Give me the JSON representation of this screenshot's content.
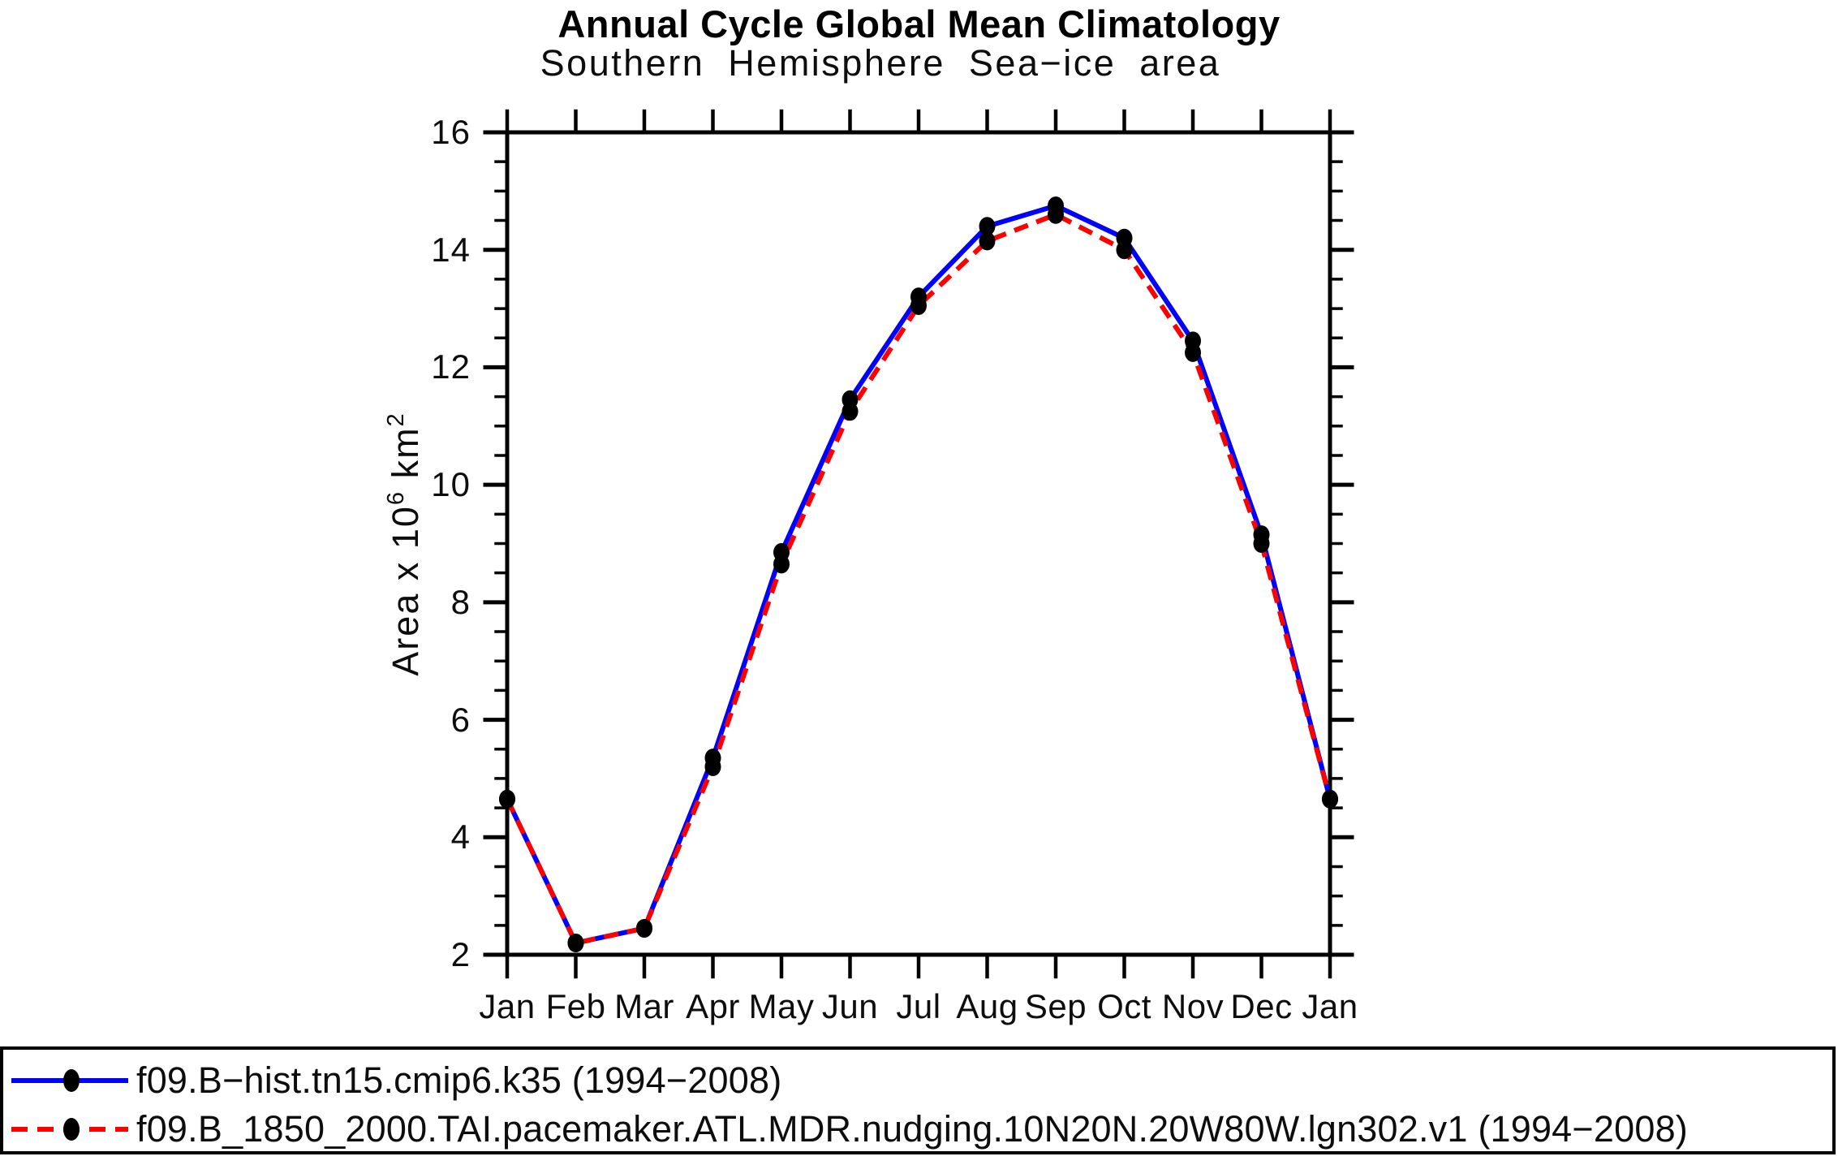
{
  "chart_data": {
    "type": "line",
    "title": "Annual Cycle Global Mean Climatology",
    "subtitle": "Southern Hemisphere Sea−ice area",
    "xlabel": "",
    "ylabel": "Area x 10^6 km^2",
    "ylabel_parts": {
      "prefix": "Area x 10",
      "exponent": "6",
      "unit": " km",
      "unit_exponent": "2"
    },
    "x_tick_labels": [
      "Jan",
      "Feb",
      "Mar",
      "Apr",
      "May",
      "Jun",
      "Jul",
      "Aug",
      "Sep",
      "Oct",
      "Nov",
      "Dec",
      "Jan"
    ],
    "y_ticks": [
      2,
      4,
      6,
      8,
      10,
      12,
      14,
      16
    ],
    "y_minor_tick_step": 0.5,
    "ylim": [
      2,
      16
    ],
    "grid": "off",
    "legend_position": "bottom box, full width",
    "marker": {
      "shape": "filled-circle",
      "color": "#000000"
    },
    "axis_color": "#000000",
    "series": [
      {
        "name": "f09.B−hist.tn15.cmip6.k35 (1994−2008)",
        "color": "#0000ff",
        "line_style": "solid",
        "values": [
          4.65,
          2.2,
          2.45,
          5.35,
          8.85,
          11.45,
          13.2,
          14.4,
          14.75,
          14.2,
          12.45,
          9.15,
          4.65
        ]
      },
      {
        "name": "f09.B_1850_2000.TAI.pacemaker.ATL.MDR.nudging.10N20N.20W80W.lgn302.v1 (1994−2008)",
        "color": "#ff0000",
        "line_style": "dashed",
        "values": [
          4.65,
          2.2,
          2.45,
          5.2,
          8.65,
          11.25,
          13.05,
          14.15,
          14.6,
          14.0,
          12.25,
          9.0,
          4.65
        ]
      }
    ]
  }
}
